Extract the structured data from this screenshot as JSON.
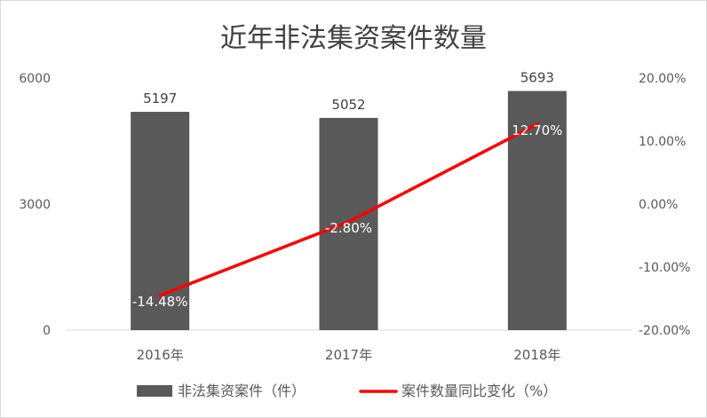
{
  "chart_data": {
    "type": "bar",
    "title": "近年非法集资案件数量",
    "categories": [
      "2016年",
      "2017年",
      "2018年"
    ],
    "series": [
      {
        "name": "非法集资案件（件）",
        "type": "bar",
        "axis": "left",
        "values": [
          5197,
          5052,
          5693
        ],
        "labels": [
          "5197",
          "5052",
          "5693"
        ],
        "color": "#595959"
      },
      {
        "name": "案件数量同比变化（%）",
        "type": "line",
        "axis": "right",
        "values": [
          -14.48,
          -2.8,
          12.7
        ],
        "labels": [
          "-14.48%",
          "-2.80%",
          "12.70%"
        ],
        "color": "#ff0000"
      }
    ],
    "y_left": {
      "ylim": [
        0,
        6000
      ],
      "ticks": [
        "0",
        "3000",
        "6000"
      ],
      "tick_values": [
        0,
        3000,
        6000
      ]
    },
    "y_right": {
      "ylim": [
        -20,
        20
      ],
      "ticks": [
        "-20.00%",
        "-10.00%",
        "0.00%",
        "10.00%",
        "20.00%"
      ],
      "tick_values": [
        -20,
        -10,
        0,
        10,
        20
      ]
    },
    "grid": false,
    "legend_position": "bottom",
    "xlabel": "",
    "ylabel": ""
  }
}
